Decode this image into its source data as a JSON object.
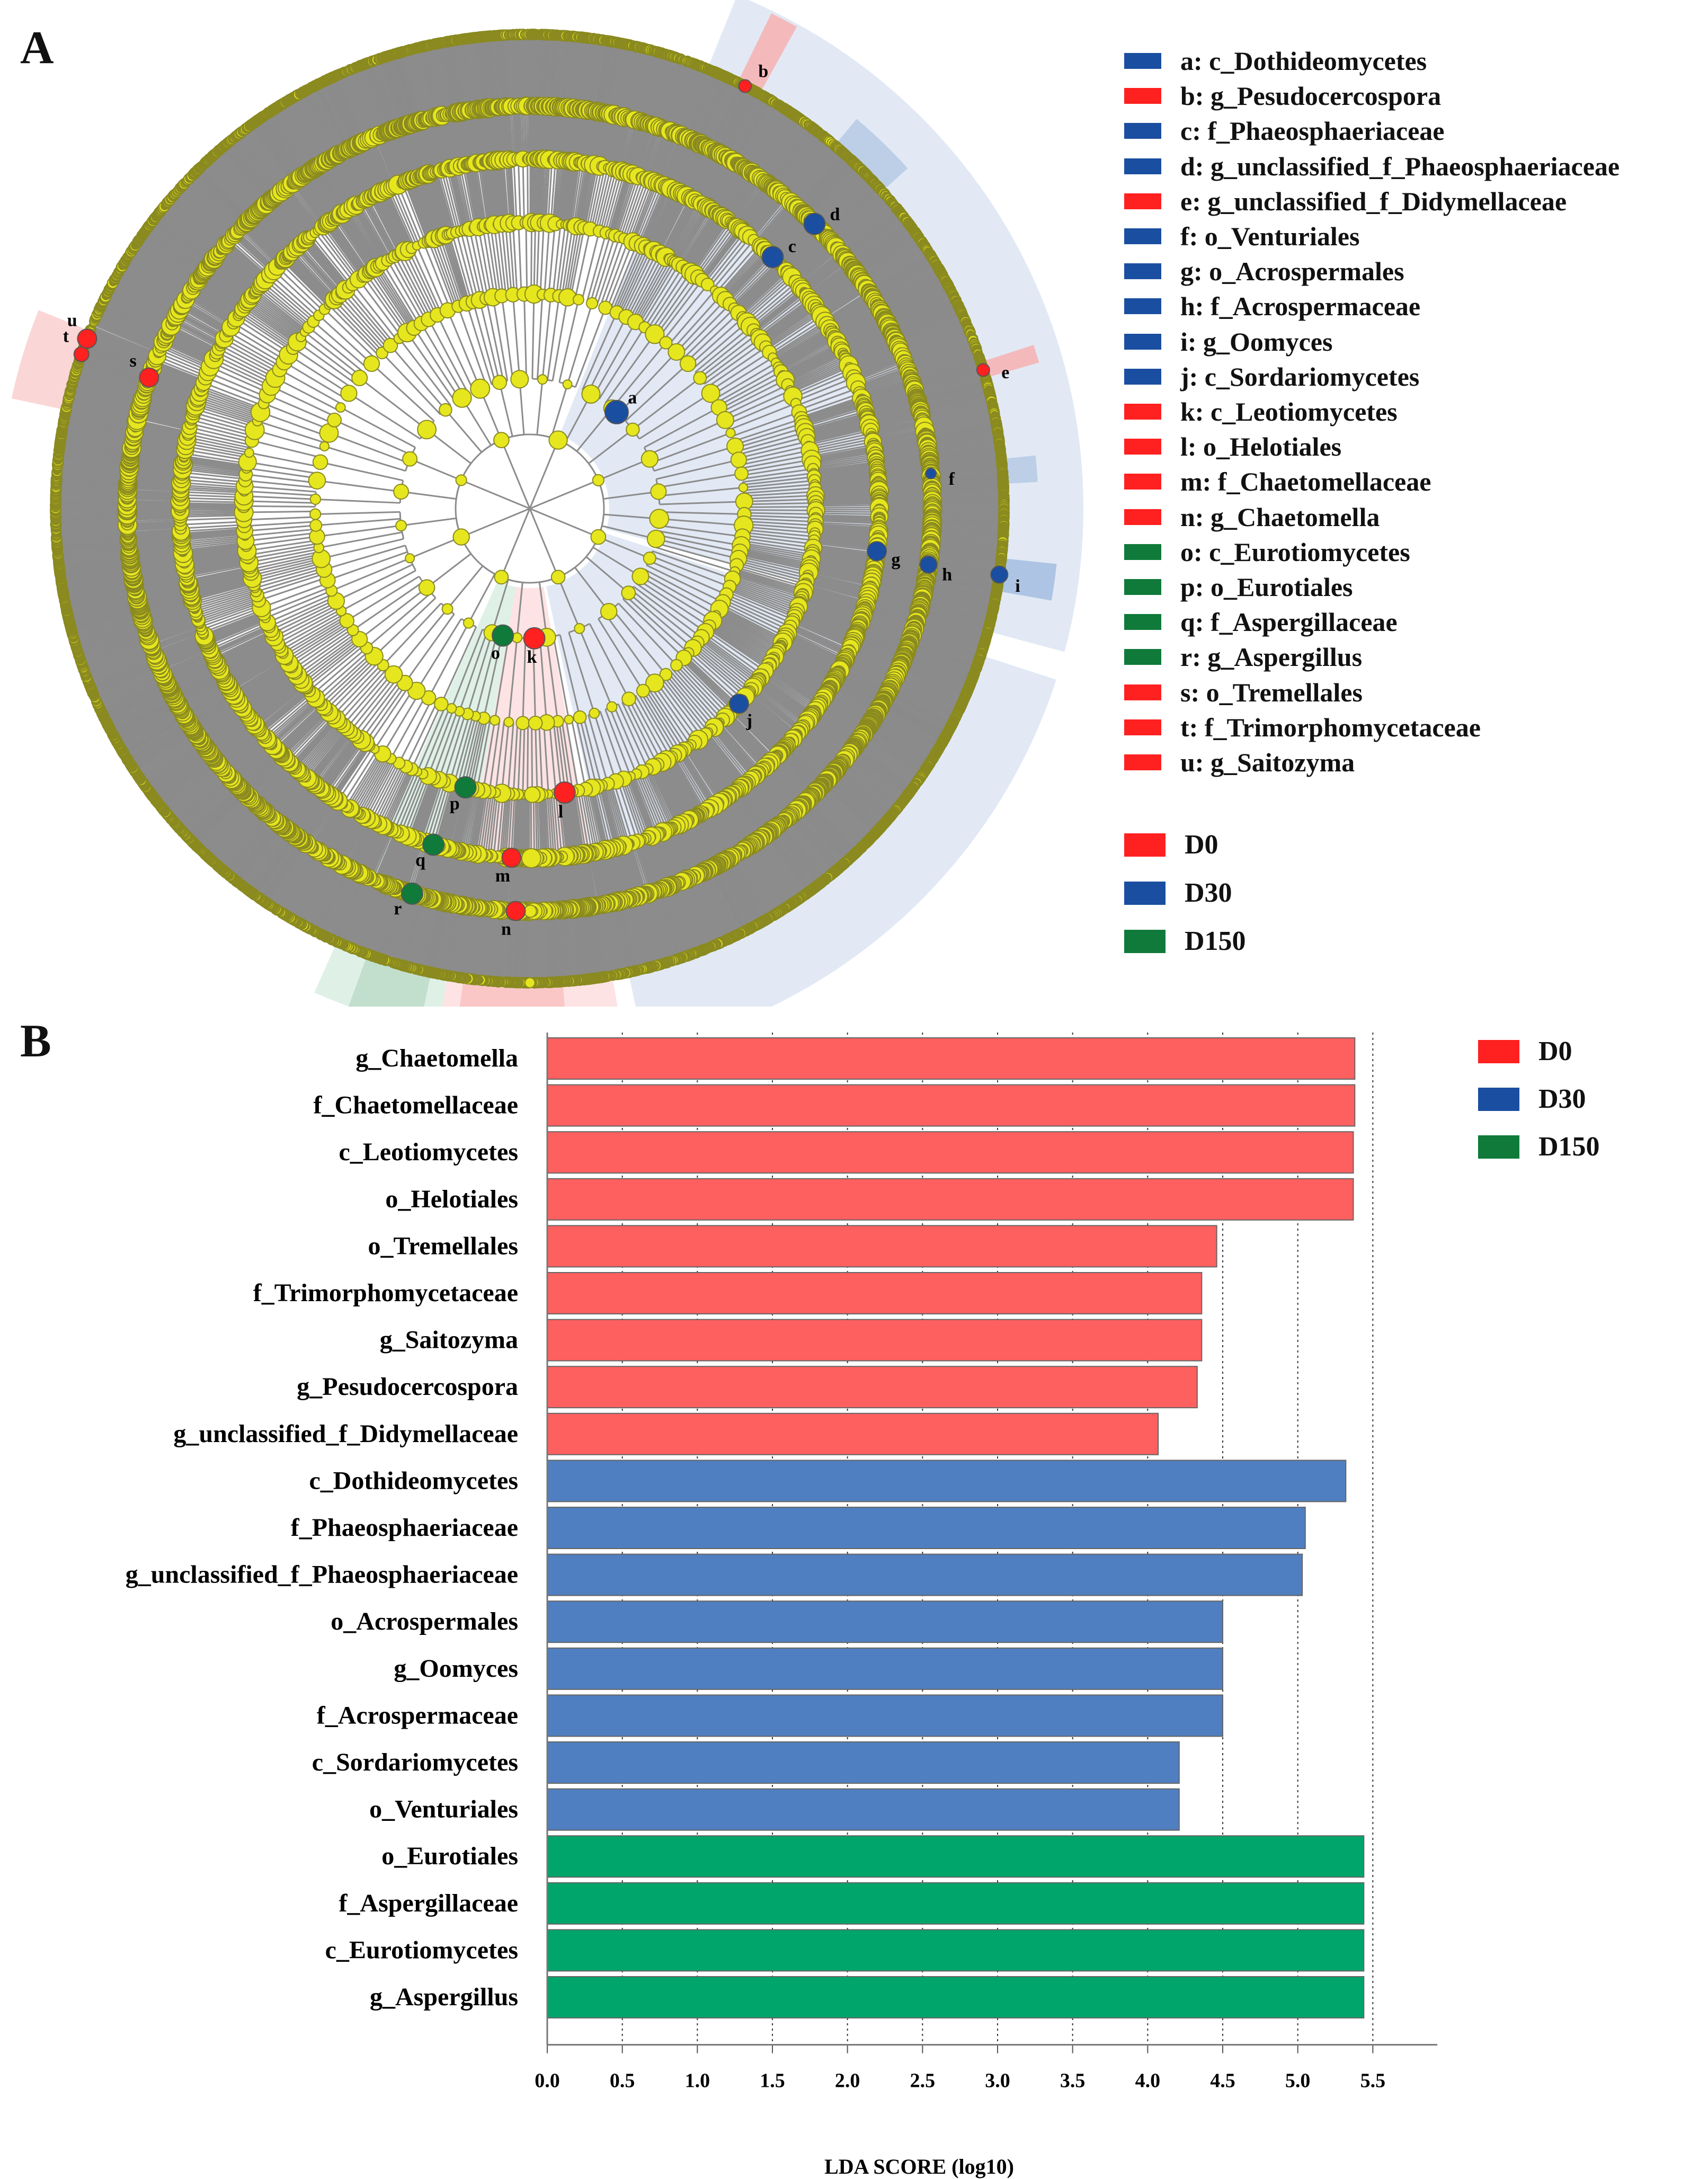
{
  "panel_a": {
    "letter": "A",
    "node_legend": [
      {
        "code": "a: c_Dothideomycetes",
        "group": "D30"
      },
      {
        "code": "b: g_Pesudocercospora",
        "group": "D0"
      },
      {
        "code": "c: f_Phaeosphaeriaceae",
        "group": "D30"
      },
      {
        "code": "d: g_unclassified_f_Phaeosphaeriaceae",
        "group": "D30"
      },
      {
        "code": "e: g_unclassified_f_Didymellaceae",
        "group": "D0"
      },
      {
        "code": "f: o_Venturiales",
        "group": "D30"
      },
      {
        "code": "g: o_Acrospermales",
        "group": "D30"
      },
      {
        "code": "h: f_Acrospermaceae",
        "group": "D30"
      },
      {
        "code": "i: g_Oomyces",
        "group": "D30"
      },
      {
        "code": "j: c_Sordariomycetes",
        "group": "D30"
      },
      {
        "code": "k: c_Leotiomycetes",
        "group": "D0"
      },
      {
        "code": "l: o_Helotiales",
        "group": "D0"
      },
      {
        "code": "m: f_Chaetomellaceae",
        "group": "D0"
      },
      {
        "code": "n: g_Chaetomella",
        "group": "D0"
      },
      {
        "code": "o: c_Eurotiomycetes",
        "group": "D150"
      },
      {
        "code": "p: o_Eurotiales",
        "group": "D150"
      },
      {
        "code": "q: f_Aspergillaceae",
        "group": "D150"
      },
      {
        "code": "r: g_Aspergillus",
        "group": "D150"
      },
      {
        "code": "s: o_Tremellales",
        "group": "D0"
      },
      {
        "code": "t: f_Trimorphomycetaceae",
        "group": "D0"
      },
      {
        "code": "u: g_Saitozyma",
        "group": "D0"
      }
    ],
    "node_labels": [
      "a",
      "b",
      "c",
      "d",
      "e",
      "f",
      "g",
      "h",
      "i",
      "j",
      "k",
      "l",
      "m",
      "n",
      "o",
      "p",
      "q",
      "r",
      "s",
      "t",
      "u"
    ],
    "groups": [
      {
        "name": "D0",
        "color": "#ff2020"
      },
      {
        "name": "D30",
        "color": "#1a4ea0"
      },
      {
        "name": "D150",
        "color": "#0f7a3a"
      }
    ]
  },
  "panel_b": {
    "letter": "B",
    "groups": [
      {
        "name": "D0",
        "color": "#ff2020"
      },
      {
        "name": "D30",
        "color": "#1a4ea0"
      },
      {
        "name": "D150",
        "color": "#0f7a3a"
      }
    ]
  },
  "chart_data": {
    "type": "bar",
    "orientation": "horizontal",
    "xlabel": "LDA SCORE (log10)",
    "xlim": [
      0,
      6.0
    ],
    "xticks": [
      "0.0",
      "0.5",
      "1.0",
      "1.5",
      "2.0",
      "2.5",
      "3.0",
      "3.5",
      "4.0",
      "4.5",
      "5.0",
      "5.5"
    ],
    "bar_colors": {
      "D0": "#fe5f5f",
      "D30": "#4f7fc0",
      "D150": "#00a56b"
    },
    "bars": [
      {
        "label": "g_Chaetomella",
        "value": 5.38,
        "group": "D0"
      },
      {
        "label": "f_Chaetomellaceae",
        "value": 5.38,
        "group": "D0"
      },
      {
        "label": "c_Leotiomycetes",
        "value": 5.37,
        "group": "D0"
      },
      {
        "label": "o_Helotiales",
        "value": 5.37,
        "group": "D0"
      },
      {
        "label": "o_Tremellales",
        "value": 4.46,
        "group": "D0"
      },
      {
        "label": "f_Trimorphomycetaceae",
        "value": 4.36,
        "group": "D0"
      },
      {
        "label": "g_Saitozyma",
        "value": 4.36,
        "group": "D0"
      },
      {
        "label": "g_Pesudocercospora",
        "value": 4.33,
        "group": "D0"
      },
      {
        "label": "g_unclassified_f_Didymellaceae",
        "value": 4.07,
        "group": "D0"
      },
      {
        "label": "c_Dothideomycetes",
        "value": 5.32,
        "group": "D30"
      },
      {
        "label": "f_Phaeosphaeriaceae",
        "value": 5.05,
        "group": "D30"
      },
      {
        "label": "g_unclassified_f_Phaeosphaeriaceae",
        "value": 5.03,
        "group": "D30"
      },
      {
        "label": "o_Acrospermales",
        "value": 4.5,
        "group": "D30"
      },
      {
        "label": "g_Oomyces",
        "value": 4.5,
        "group": "D30"
      },
      {
        "label": "f_Acrospermaceae",
        "value": 4.5,
        "group": "D30"
      },
      {
        "label": "c_Sordariomycetes",
        "value": 4.21,
        "group": "D30"
      },
      {
        "label": "o_Venturiales",
        "value": 4.21,
        "group": "D30"
      },
      {
        "label": "o_Eurotiales",
        "value": 5.44,
        "group": "D150"
      },
      {
        "label": "f_Aspergillaceae",
        "value": 5.44,
        "group": "D150"
      },
      {
        "label": "c_Eurotiomycetes",
        "value": 5.44,
        "group": "D150"
      },
      {
        "label": "g_Aspergillus",
        "value": 5.44,
        "group": "D150"
      }
    ]
  }
}
